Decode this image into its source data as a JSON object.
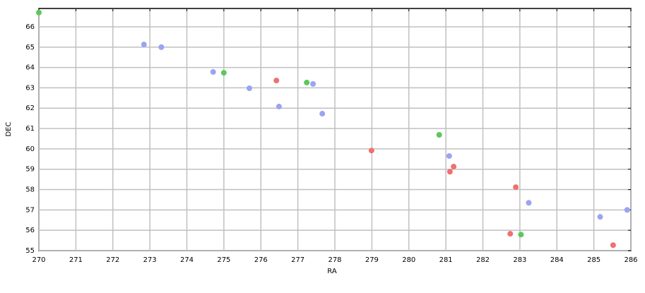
{
  "chart_data": {
    "type": "scatter",
    "x_label": "RA",
    "y_label": "DEC",
    "xlim": [
      270,
      286
    ],
    "ylim": [
      55,
      66.9
    ],
    "xticks": [
      270,
      271,
      272,
      273,
      274,
      275,
      276,
      277,
      278,
      279,
      280,
      281,
      282,
      283,
      284,
      285,
      286
    ],
    "yticks": [
      55,
      56,
      57,
      58,
      59,
      60,
      61,
      62,
      63,
      64,
      65,
      66
    ],
    "grid": true,
    "series": [
      {
        "color": "#f07070",
        "x": [
          276.42,
          278.99,
          281.21,
          281.11,
          282.89,
          282.74,
          285.52
        ],
        "y": [
          63.36,
          59.92,
          59.13,
          58.88,
          58.12,
          55.83,
          55.27
        ]
      },
      {
        "color": "#9aa4f0",
        "x": [
          272.84,
          273.31,
          274.71,
          275.69,
          277.41,
          276.49,
          277.66,
          281.09,
          283.24,
          285.17,
          285.9
        ],
        "y": [
          65.13,
          65.0,
          63.78,
          62.98,
          63.19,
          62.08,
          61.73,
          59.65,
          57.35,
          56.66,
          57.0
        ]
      },
      {
        "color": "#5cc85c",
        "x": [
          270,
          275.0,
          277.24,
          280.82,
          283.03
        ],
        "y": [
          66.7,
          63.74,
          63.26,
          60.69,
          55.79
        ]
      }
    ]
  }
}
